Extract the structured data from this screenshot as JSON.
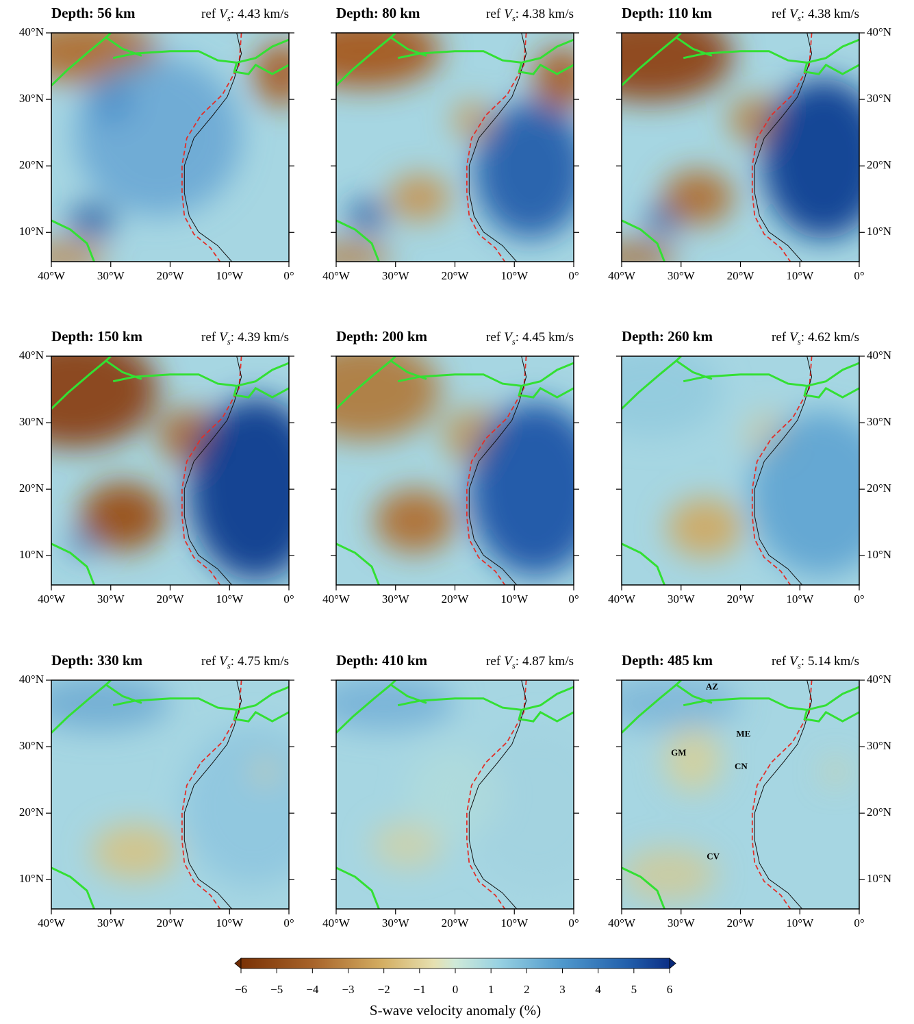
{
  "panels": [
    {
      "title": "Depth: 56 km",
      "ref_value": "4.43 km/s"
    },
    {
      "title": "Depth: 80 km",
      "ref_value": "4.38 km/s"
    },
    {
      "title": "Depth: 110 km",
      "ref_value": "4.38 km/s"
    },
    {
      "title": "Depth: 150 km",
      "ref_value": "4.39 km/s"
    },
    {
      "title": "Depth: 200 km",
      "ref_value": "4.45 km/s"
    },
    {
      "title": "Depth: 260 km",
      "ref_value": "4.62 km/s"
    },
    {
      "title": "Depth: 330 km",
      "ref_value": "4.75 km/s"
    },
    {
      "title": "Depth: 410 km",
      "ref_value": "4.87 km/s"
    },
    {
      "title": "Depth: 485 km",
      "ref_value": "5.14 km/s",
      "labels": [
        {
          "text": "AZ",
          "lon": -24.8,
          "lat": 38.9
        },
        {
          "text": "ME",
          "lon": -19.5,
          "lat": 31.8
        },
        {
          "text": "GM",
          "lon": -30.4,
          "lat": 29
        },
        {
          "text": "CN",
          "lon": -19.9,
          "lat": 26.9
        },
        {
          "text": "CV",
          "lon": -24.6,
          "lat": 13.4
        }
      ]
    }
  ],
  "ref_label": "ref",
  "ref_symbol": "V",
  "ref_subscript": "s",
  "ref_colon": ":",
  "map": {
    "xlim": [
      -40,
      0
    ],
    "ylim": [
      5.6,
      40
    ],
    "xticks": [
      {
        "value": -40,
        "label": "40°W"
      },
      {
        "value": -30,
        "label": "30°W"
      },
      {
        "value": -20,
        "label": "20°W"
      },
      {
        "value": -10,
        "label": "10°W"
      },
      {
        "value": 0,
        "label": "0°"
      }
    ],
    "yticks": [
      {
        "value": 40,
        "label": "40°N"
      },
      {
        "value": 30,
        "label": "30°N"
      },
      {
        "value": 20,
        "label": "20°N"
      },
      {
        "value": 10,
        "label": "10°N"
      }
    ]
  },
  "colorbar": {
    "xlim": [
      -6,
      6
    ],
    "ticks": [
      {
        "value": -6,
        "label": "−6"
      },
      {
        "value": -5,
        "label": "−5"
      },
      {
        "value": -4,
        "label": "−4"
      },
      {
        "value": -3,
        "label": "−3"
      },
      {
        "value": -2,
        "label": "−2"
      },
      {
        "value": -1,
        "label": "−1"
      },
      0,
      1,
      2,
      3,
      4,
      5,
      6
    ],
    "label": "S-wave velocity anomaly (%)"
  }
}
